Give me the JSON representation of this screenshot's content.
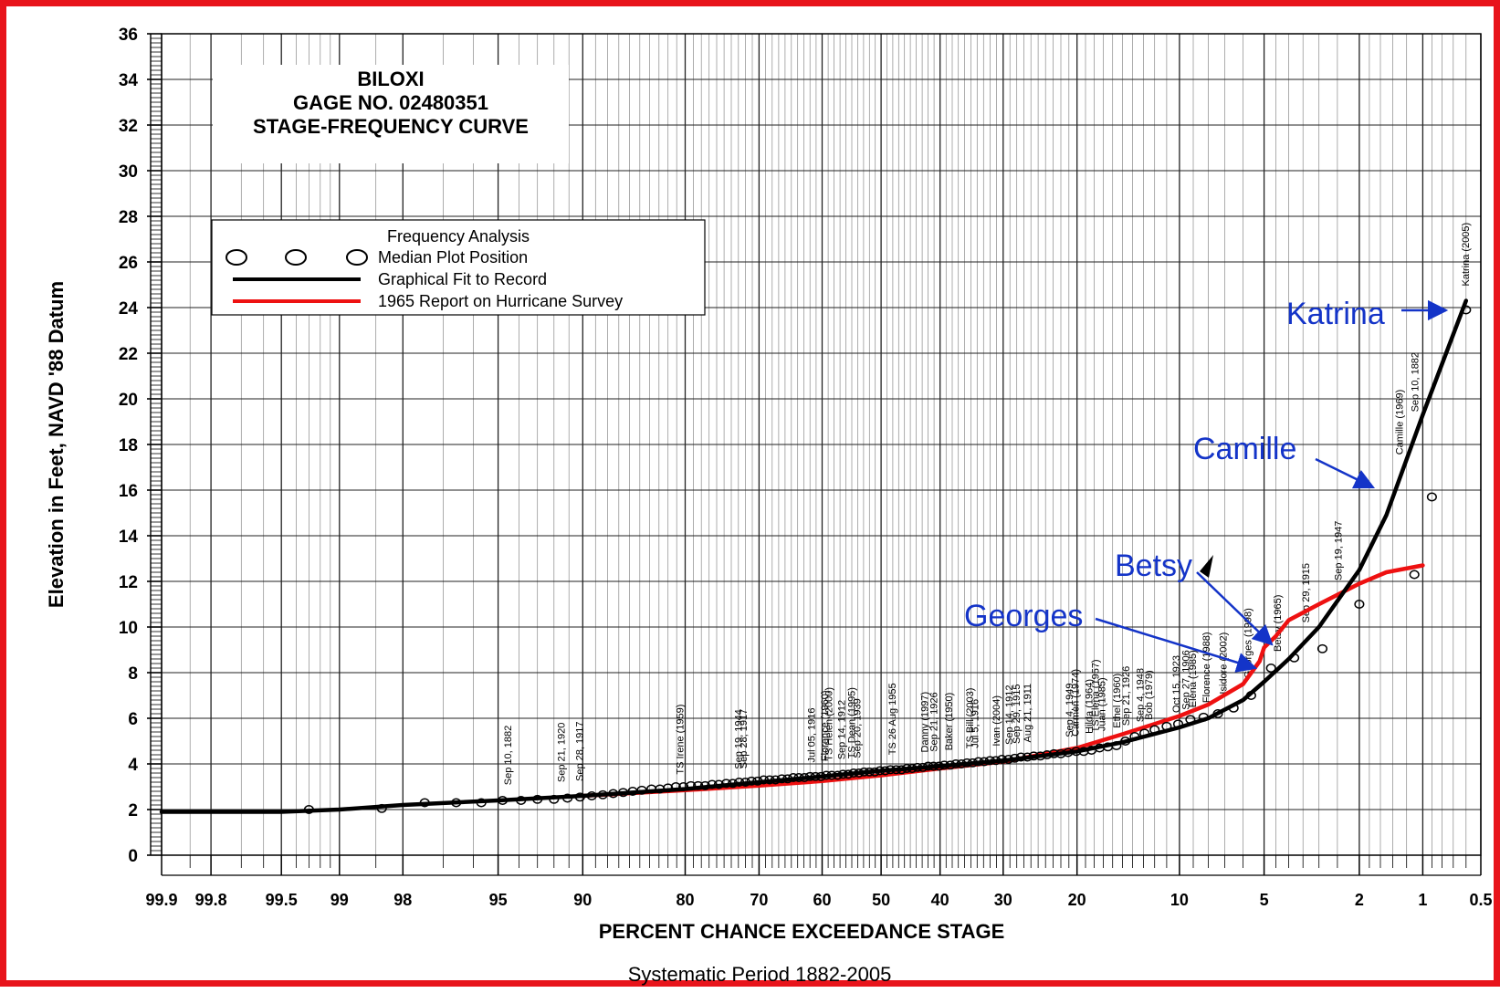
{
  "chart_data": {
    "type": "line",
    "title_lines": [
      "BILOXI",
      "GAGE NO. 02480351",
      "STAGE-FREQUENCY CURVE"
    ],
    "xlabel": "PERCENT CHANCE EXCEEDANCE STAGE",
    "ylabel": "Elevation in Feet, NAVD '88 Datum",
    "footnote": "Systematic Period 1882-2005",
    "x_scale": "probability",
    "x_reversed": true,
    "xlim": [
      99.9,
      0.5
    ],
    "ylim": [
      0,
      36
    ],
    "grid": true,
    "y_ticks": [
      0,
      2,
      4,
      6,
      8,
      10,
      12,
      14,
      16,
      18,
      20,
      22,
      24,
      26,
      28,
      30,
      32,
      34,
      36
    ],
    "x_ticks": [
      {
        "value": 99.9,
        "label": "99.9"
      },
      {
        "value": 99.8,
        "label": "99.8"
      },
      {
        "value": 99.5,
        "label": "99.5"
      },
      {
        "value": 99,
        "label": "99"
      },
      {
        "value": 98,
        "label": "98"
      },
      {
        "value": 95,
        "label": "95"
      },
      {
        "value": 90,
        "label": "90"
      },
      {
        "value": 80,
        "label": "80"
      },
      {
        "value": 70,
        "label": "70"
      },
      {
        "value": 60,
        "label": "60"
      },
      {
        "value": 50,
        "label": "50"
      },
      {
        "value": 40,
        "label": "40"
      },
      {
        "value": 30,
        "label": "30"
      },
      {
        "value": 20,
        "label": "20"
      },
      {
        "value": 10,
        "label": "10"
      },
      {
        "value": 5,
        "label": "5"
      },
      {
        "value": 2,
        "label": "2"
      },
      {
        "value": 1,
        "label": "1"
      },
      {
        "value": 0.5,
        "label": "0.5"
      }
    ],
    "legend": {
      "title": "Frequency Analysis",
      "position": "upper-left",
      "entries": [
        "Median Plot Position",
        "Graphical Fit to Record",
        "1965 Report on Hurricane Survey"
      ]
    },
    "series": [
      {
        "name": "Graphical Fit to Record",
        "color": "#000000",
        "points": [
          [
            99.9,
            1.9
          ],
          [
            99.5,
            1.9
          ],
          [
            99,
            2.0
          ],
          [
            98,
            2.2
          ],
          [
            95,
            2.4
          ],
          [
            90,
            2.6
          ],
          [
            80,
            2.9
          ],
          [
            70,
            3.2
          ],
          [
            60,
            3.45
          ],
          [
            50,
            3.7
          ],
          [
            40,
            3.9
          ],
          [
            30,
            4.15
          ],
          [
            20,
            4.55
          ],
          [
            15,
            4.95
          ],
          [
            10,
            5.6
          ],
          [
            8,
            6.0
          ],
          [
            6,
            6.8
          ],
          [
            5,
            7.6
          ],
          [
            4,
            8.6
          ],
          [
            3,
            10.0
          ],
          [
            2,
            12.5
          ],
          [
            1.5,
            14.9
          ],
          [
            1,
            19.3
          ],
          [
            0.6,
            24.3
          ]
        ]
      },
      {
        "name": "1965 Report on Hurricane Survey",
        "color": "#ee1111",
        "points": [
          [
            90,
            2.6
          ],
          [
            80,
            2.85
          ],
          [
            70,
            3.05
          ],
          [
            60,
            3.25
          ],
          [
            50,
            3.5
          ],
          [
            40,
            3.8
          ],
          [
            30,
            4.1
          ],
          [
            20,
            4.7
          ],
          [
            15,
            5.3
          ],
          [
            10,
            6.1
          ],
          [
            8,
            6.6
          ],
          [
            6,
            7.5
          ],
          [
            5.2,
            8.5
          ],
          [
            5,
            9.1
          ],
          [
            4.5,
            9.6
          ],
          [
            4,
            10.3
          ],
          [
            3,
            11.0
          ],
          [
            2,
            11.9
          ],
          [
            1.5,
            12.4
          ],
          [
            1,
            12.7
          ]
        ]
      },
      {
        "name": "Median Plot Position",
        "color": "#000000",
        "marker": "circle",
        "points": [
          [
            99.3,
            2.0
          ],
          [
            98.4,
            2.05
          ],
          [
            97.5,
            2.3
          ],
          [
            96.6,
            2.3
          ],
          [
            95.7,
            2.3
          ],
          [
            94.8,
            2.4
          ],
          [
            93.9,
            2.4
          ],
          [
            93.0,
            2.45
          ],
          [
            92.0,
            2.45
          ],
          [
            91.1,
            2.5
          ],
          [
            90.2,
            2.55
          ],
          [
            89.3,
            2.6
          ],
          [
            88.4,
            2.65
          ],
          [
            87.5,
            2.7
          ],
          [
            86.6,
            2.75
          ],
          [
            85.7,
            2.8
          ],
          [
            84.8,
            2.85
          ],
          [
            83.8,
            2.9
          ],
          [
            82.9,
            2.9
          ],
          [
            82.0,
            2.95
          ],
          [
            81.1,
            3.0
          ],
          [
            80.2,
            3.0
          ],
          [
            79.3,
            3.05
          ],
          [
            78.4,
            3.05
          ],
          [
            77.5,
            3.05
          ],
          [
            76.6,
            3.1
          ],
          [
            75.7,
            3.1
          ],
          [
            74.7,
            3.15
          ],
          [
            73.8,
            3.15
          ],
          [
            72.9,
            3.2
          ],
          [
            72.0,
            3.2
          ],
          [
            71.1,
            3.25
          ],
          [
            70.2,
            3.25
          ],
          [
            69.3,
            3.3
          ],
          [
            68.4,
            3.3
          ],
          [
            67.5,
            3.3
          ],
          [
            66.5,
            3.35
          ],
          [
            65.6,
            3.35
          ],
          [
            64.7,
            3.4
          ],
          [
            63.8,
            3.4
          ],
          [
            62.9,
            3.4
          ],
          [
            62.0,
            3.45
          ],
          [
            61.1,
            3.45
          ],
          [
            60.2,
            3.45
          ],
          [
            59.3,
            3.5
          ],
          [
            58.4,
            3.5
          ],
          [
            57.4,
            3.5
          ],
          [
            56.5,
            3.55
          ],
          [
            55.6,
            3.55
          ],
          [
            54.7,
            3.6
          ],
          [
            53.8,
            3.6
          ],
          [
            52.9,
            3.65
          ],
          [
            52.0,
            3.65
          ],
          [
            51.1,
            3.65
          ],
          [
            50.2,
            3.7
          ],
          [
            49.3,
            3.7
          ],
          [
            48.4,
            3.75
          ],
          [
            47.4,
            3.75
          ],
          [
            46.5,
            3.75
          ],
          [
            45.6,
            3.8
          ],
          [
            44.7,
            3.8
          ],
          [
            43.8,
            3.85
          ],
          [
            42.9,
            3.85
          ],
          [
            42.0,
            3.9
          ],
          [
            41.1,
            3.9
          ],
          [
            40.2,
            3.9
          ],
          [
            39.3,
            3.95
          ],
          [
            38.3,
            3.95
          ],
          [
            37.4,
            4.0
          ],
          [
            36.5,
            4.0
          ],
          [
            35.6,
            4.05
          ],
          [
            34.7,
            4.05
          ],
          [
            33.8,
            4.1
          ],
          [
            32.9,
            4.1
          ],
          [
            32.0,
            4.15
          ],
          [
            31.1,
            4.15
          ],
          [
            30.2,
            4.2
          ],
          [
            29.2,
            4.2
          ],
          [
            28.3,
            4.25
          ],
          [
            27.4,
            4.3
          ],
          [
            26.5,
            4.3
          ],
          [
            25.6,
            4.35
          ],
          [
            24.7,
            4.35
          ],
          [
            23.8,
            4.4
          ],
          [
            22.9,
            4.45
          ],
          [
            22.0,
            4.45
          ],
          [
            21.1,
            4.5
          ],
          [
            20.1,
            4.55
          ],
          [
            19.2,
            4.55
          ],
          [
            18.3,
            4.6
          ],
          [
            17.4,
            4.7
          ],
          [
            16.5,
            4.75
          ],
          [
            15.6,
            4.8
          ],
          [
            14.7,
            5.0
          ],
          [
            13.8,
            5.2
          ],
          [
            12.9,
            5.35
          ],
          [
            12.0,
            5.5
          ],
          [
            11.0,
            5.65
          ],
          [
            10.1,
            5.75
          ],
          [
            9.2,
            5.95
          ],
          [
            8.3,
            6.05
          ],
          [
            7.4,
            6.2
          ],
          [
            6.5,
            6.45
          ],
          [
            5.6,
            7.0
          ],
          [
            4.7,
            8.2
          ],
          [
            3.8,
            8.65
          ],
          [
            2.9,
            9.05
          ],
          [
            2.0,
            11.0
          ],
          [
            1.1,
            12.3
          ],
          [
            0.9,
            15.7
          ],
          [
            0.6,
            23.9
          ]
        ]
      }
    ],
    "storm_labels": [
      {
        "x": 94.4,
        "text": "Sep 10, 1882"
      },
      {
        "x": 91.3,
        "text": "Sep 21, 1920"
      },
      {
        "x": 90.0,
        "text": "Sep 28, 1917"
      },
      {
        "x": 80.2,
        "text": "TS Irene (1959)"
      },
      {
        "x": 72.5,
        "text": "Sep 19, 1944"
      },
      {
        "x": 71.8,
        "text": "Sep 28, 1917"
      },
      {
        "x": 61.2,
        "text": "Jul 05, 1916"
      },
      {
        "x": 59.0,
        "text": "Florence (1960)"
      },
      {
        "x": 58.3,
        "text": "TS Helen (2000)"
      },
      {
        "x": 56.2,
        "text": "Sep 14, 1912"
      },
      {
        "x": 54.5,
        "text": "TS Dean (1995)"
      },
      {
        "x": 53.5,
        "text": "Sep 20, 1939"
      },
      {
        "x": 47.5,
        "text": "TS 26 Aug 1955"
      },
      {
        "x": 42.0,
        "text": "Danny (1997)"
      },
      {
        "x": 40.5,
        "text": "Sep 21, 1926"
      },
      {
        "x": 38.0,
        "text": "Baker (1950)"
      },
      {
        "x": 34.6,
        "text": "TS Bill (2003)"
      },
      {
        "x": 33.8,
        "text": "Jul 5, 1916"
      },
      {
        "x": 30.5,
        "text": "Ivan (2004)"
      },
      {
        "x": 28.6,
        "text": "Sep 14, 1912"
      },
      {
        "x": 27.6,
        "text": "Sep 29, 1915"
      },
      {
        "x": 26.0,
        "text": "Aug 21, 1911"
      },
      {
        "x": 20.5,
        "text": "Sep 4, 1949"
      },
      {
        "x": 19.8,
        "text": "Carmen (1974)"
      },
      {
        "x": 18.2,
        "text": "Hilda (1964)"
      },
      {
        "x": 17.5,
        "text": "TS Elena (1957)"
      },
      {
        "x": 16.8,
        "text": "Juan (1985)"
      },
      {
        "x": 15.2,
        "text": "Ethel (1960)"
      },
      {
        "x": 14.3,
        "text": "Sep 21, 1926"
      },
      {
        "x": 13.0,
        "text": "Sep 4, 1948"
      },
      {
        "x": 12.2,
        "text": "Bob (1979)"
      },
      {
        "x": 10.0,
        "text": "Oct 15, 1923"
      },
      {
        "x": 9.3,
        "text": "Sep 27, 1906"
      },
      {
        "x": 8.8,
        "text": "Elena (1985)"
      },
      {
        "x": 7.9,
        "text": "Florence (1988)"
      },
      {
        "x": 6.9,
        "text": "Isidore (2002)"
      },
      {
        "x": 5.6,
        "text": "Georges (1998)"
      },
      {
        "x": 4.3,
        "text": "Betsy (1965)"
      },
      {
        "x": 3.3,
        "text": "Sep 29, 1915"
      },
      {
        "x": 2.4,
        "text": "Sep 19, 1947"
      },
      {
        "x": 1.25,
        "text": "Camille (1969)"
      },
      {
        "x": 1.05,
        "text": "Sep 10, 1882"
      },
      {
        "x": 0.58,
        "text": "Katrina (2005)"
      }
    ],
    "callouts": [
      {
        "text": "Katrina"
      },
      {
        "text": "Camille"
      },
      {
        "text": "Betsy"
      },
      {
        "text": "Georges"
      }
    ]
  }
}
